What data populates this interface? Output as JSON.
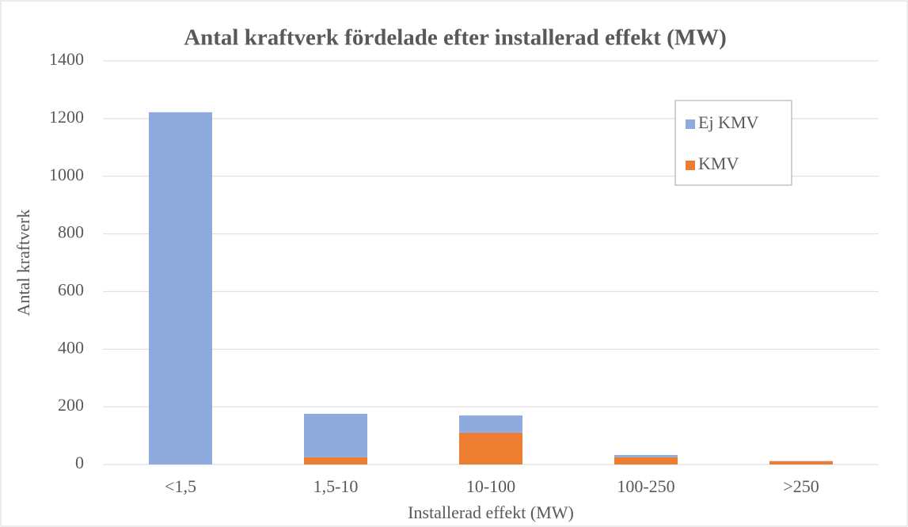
{
  "chart_data": {
    "type": "stacked_bar",
    "title": "Antal kraftverk fördelade efter installerad effekt  (MW)",
    "x_label": "Installerad effekt (MW)",
    "y_label": "Antal kraftverk",
    "categories": [
      "<1,5",
      "1,5-10",
      "10-100",
      "100-250",
      ">250"
    ],
    "series": [
      {
        "name": "Ej KMV",
        "color": "#8faadc",
        "values": [
          1222,
          151,
          60,
          8,
          1
        ]
      },
      {
        "name": "KMV",
        "color": "#ed7d31",
        "values": [
          0,
          25,
          110,
          25,
          11
        ]
      }
    ],
    "ylim": [
      0,
      1400
    ],
    "yticks": [
      0,
      200,
      400,
      600,
      800,
      1000,
      1200,
      1400
    ],
    "grid": true,
    "legend": "upper right"
  }
}
